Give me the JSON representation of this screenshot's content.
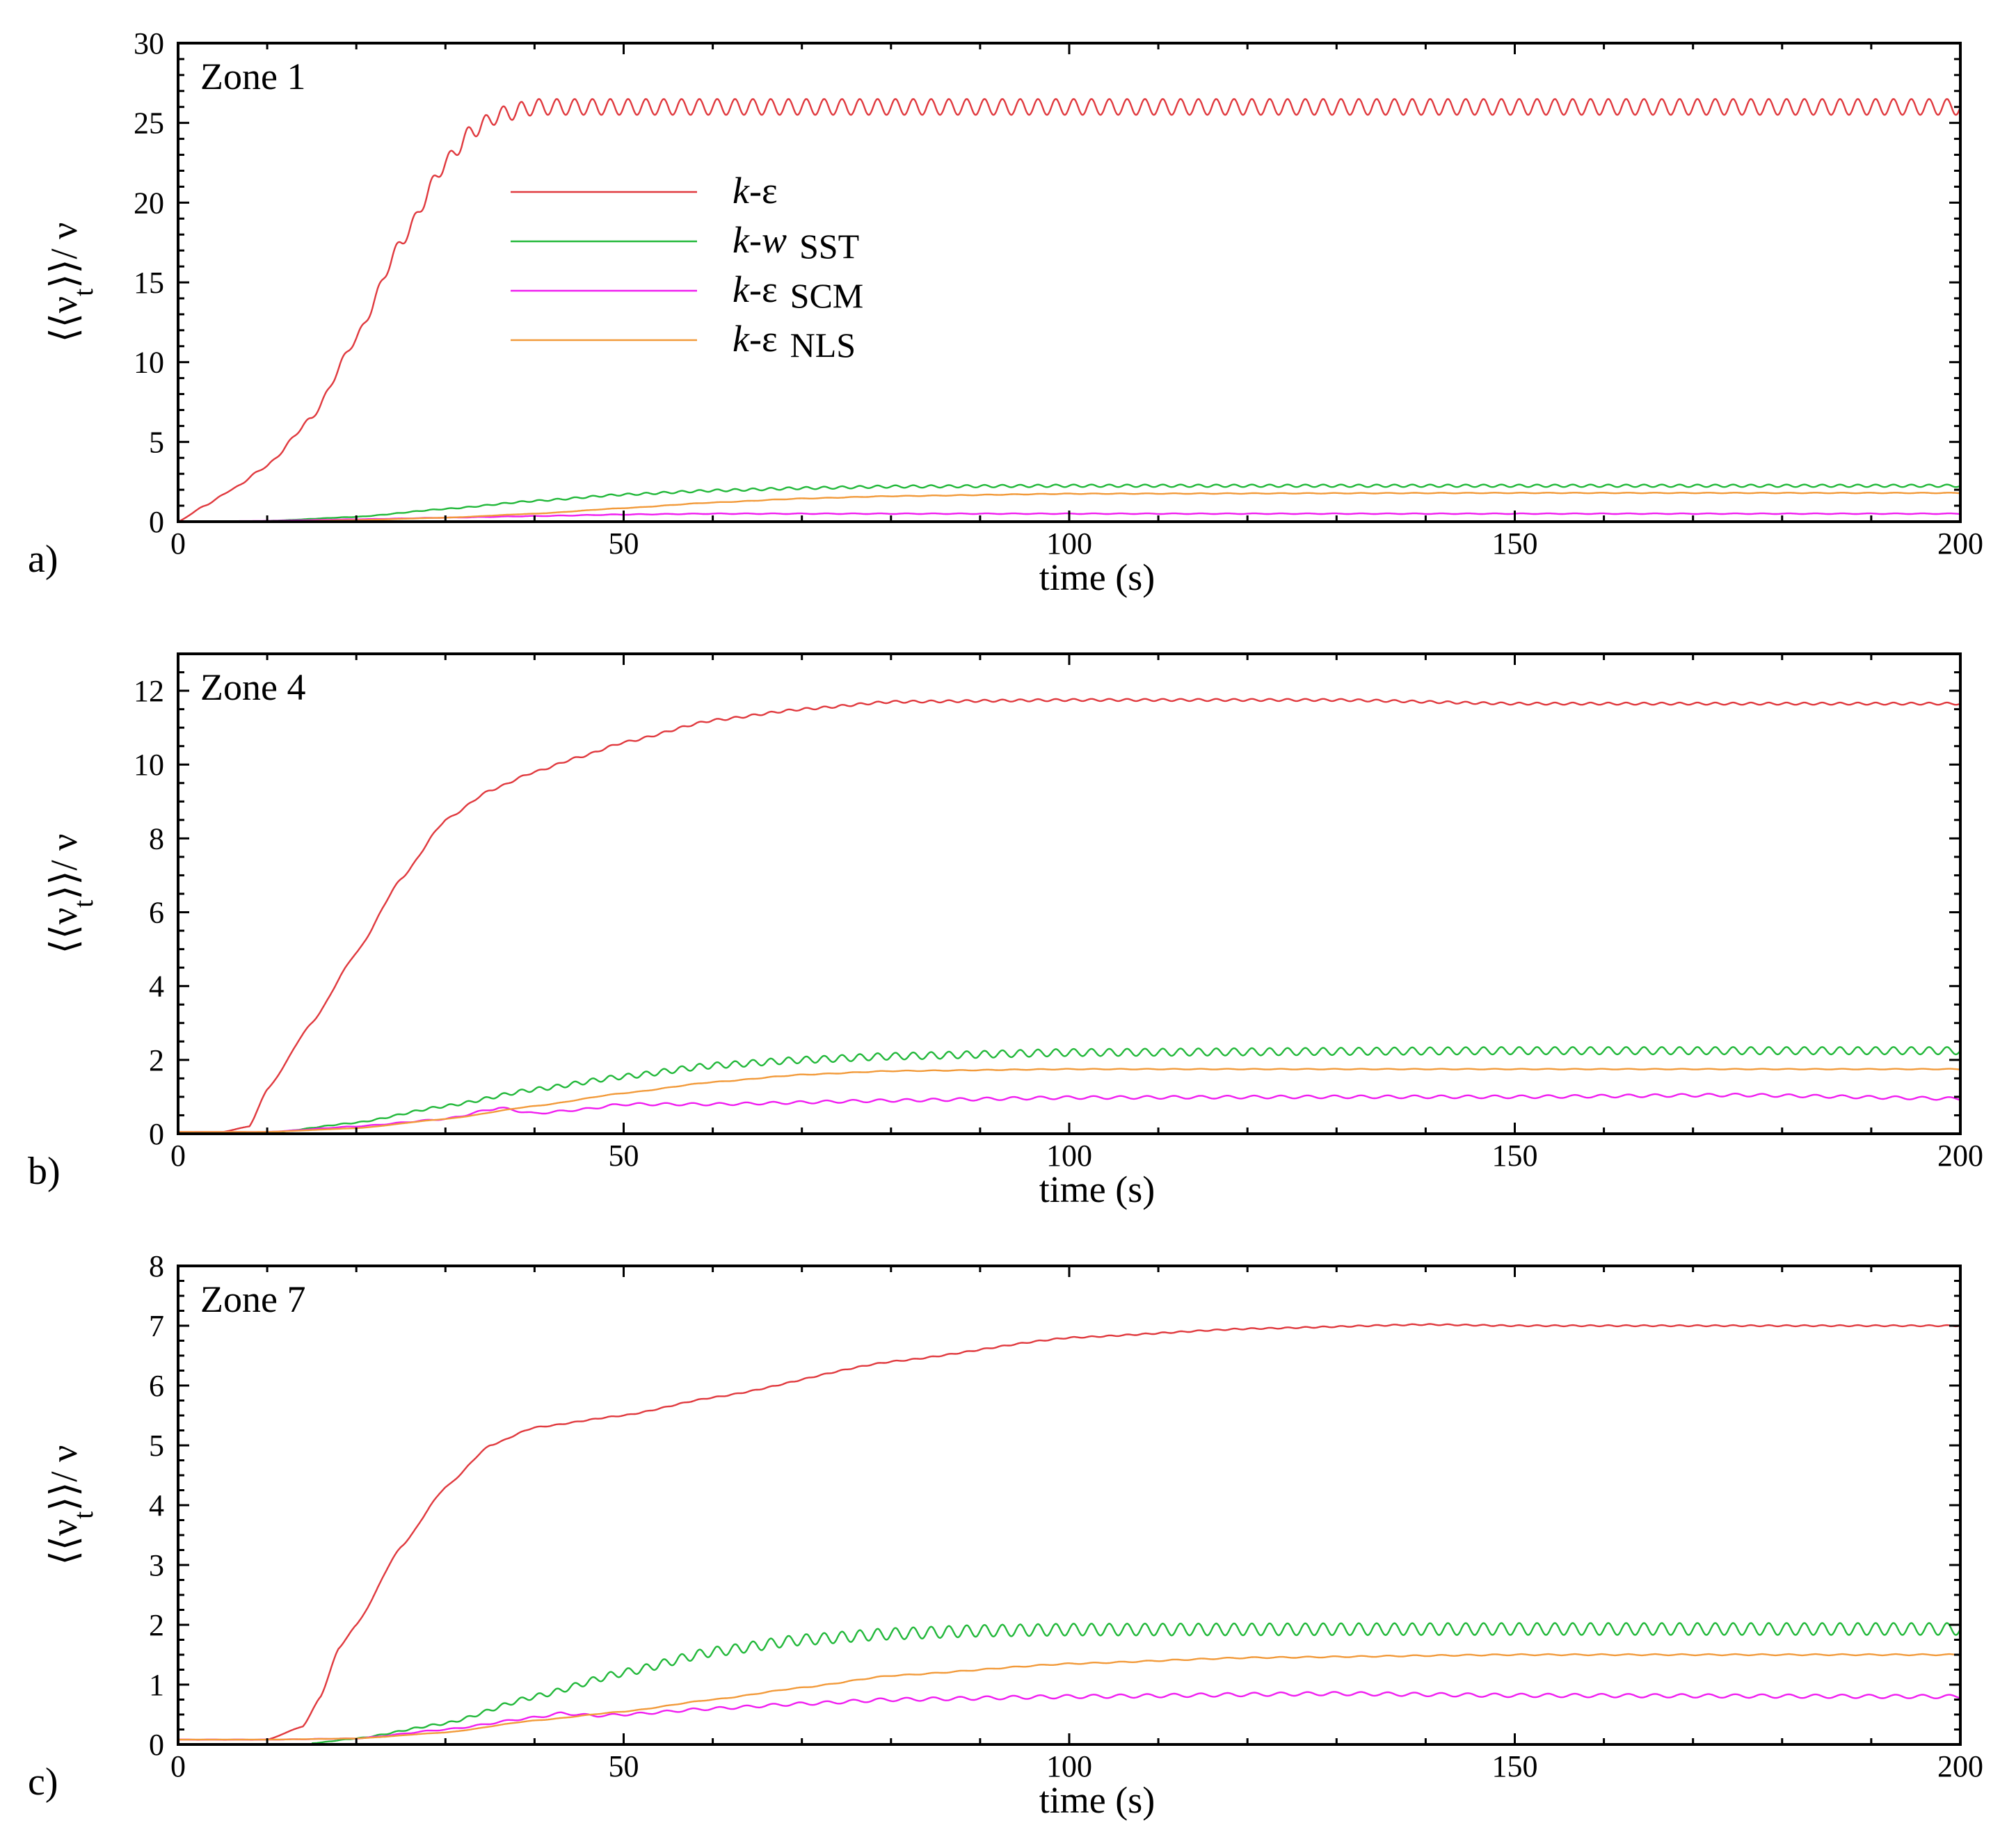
{
  "figure": {
    "colors": {
      "k_eps": "#e0393e",
      "k_w_sst": "#22b83a",
      "k_eps_scm": "#f01df0",
      "k_eps_nls": "#f29a3a"
    },
    "legend": {
      "entries": [
        {
          "prefix": "k",
          "suffix": "-ε",
          "tag": ""
        },
        {
          "prefix": "k",
          "suffix": "-w",
          "tag": "SST"
        },
        {
          "prefix": "k",
          "suffix": "-ε",
          "tag": "SCM"
        },
        {
          "prefix": "k",
          "suffix": "-ε",
          "tag": "NLS"
        }
      ]
    }
  },
  "chart_data": [
    {
      "type": "line",
      "panel_letter": "a)",
      "zone_label": "Zone 1",
      "xlabel": "time (s)",
      "ylabel": "⟨⟨ν_t⟩⟩/ ν",
      "xlim": [
        0,
        200
      ],
      "ylim": [
        0,
        30
      ],
      "xticks": [
        0,
        50,
        100,
        150,
        200
      ],
      "yticks": [
        0,
        5,
        10,
        15,
        20,
        25,
        30
      ],
      "grid": false,
      "legend_position": "upper-left inside",
      "series": [
        {
          "name": "k-ε",
          "x": [
            0,
            3,
            6,
            10,
            15,
            20,
            25,
            30,
            33,
            36,
            40,
            45,
            50,
            100,
            150,
            200
          ],
          "y": [
            0,
            1.0,
            2.0,
            3.5,
            6.5,
            11.5,
            17.5,
            22.5,
            24.5,
            25.5,
            26.0,
            26.0,
            26.0,
            26.0,
            26.0,
            26.0
          ],
          "osc_amp": 0.5,
          "osc_period": 2.0
        },
        {
          "name": "k-w SST",
          "x": [
            10,
            20,
            30,
            40,
            50,
            60,
            70,
            80,
            100,
            150,
            200
          ],
          "y": [
            0.05,
            0.3,
            0.8,
            1.3,
            1.7,
            1.95,
            2.1,
            2.2,
            2.25,
            2.25,
            2.25
          ],
          "osc_amp": 0.08,
          "osc_period": 2.0
        },
        {
          "name": "k-ε SCM",
          "x": [
            0,
            10,
            20,
            30,
            40,
            50,
            60,
            100,
            150,
            200
          ],
          "y": [
            0,
            0.05,
            0.15,
            0.25,
            0.35,
            0.45,
            0.5,
            0.5,
            0.5,
            0.5
          ],
          "osc_amp": 0.02,
          "osc_period": 3.0
        },
        {
          "name": "k-ε NLS",
          "x": [
            10,
            20,
            30,
            40,
            50,
            60,
            70,
            80,
            100,
            150,
            200
          ],
          "y": [
            0,
            0.1,
            0.25,
            0.5,
            0.85,
            1.2,
            1.45,
            1.6,
            1.75,
            1.8,
            1.8
          ],
          "osc_amp": 0.02,
          "osc_period": 3.0
        }
      ]
    },
    {
      "type": "line",
      "panel_letter": "b)",
      "zone_label": "Zone 4",
      "xlabel": "time (s)",
      "ylabel": "⟨⟨ν_t⟩⟩/ ν",
      "xlim": [
        0,
        200
      ],
      "ylim": [
        0,
        13
      ],
      "xticks": [
        0,
        50,
        100,
        150,
        200
      ],
      "yticks": [
        0,
        2,
        4,
        6,
        8,
        10,
        12
      ],
      "grid": false,
      "series": [
        {
          "name": "k-ε",
          "x": [
            0,
            5,
            8,
            10,
            15,
            20,
            25,
            30,
            35,
            40,
            45,
            50,
            60,
            70,
            80,
            100,
            130,
            150,
            200
          ],
          "y": [
            0.05,
            0.05,
            0.2,
            1.2,
            3.0,
            4.9,
            6.9,
            8.5,
            9.3,
            9.8,
            10.2,
            10.6,
            11.2,
            11.5,
            11.7,
            11.75,
            11.75,
            11.65,
            11.65
          ],
          "osc_amp": 0.03,
          "osc_period": 2.0
        },
        {
          "name": "k-w SST",
          "x": [
            10,
            20,
            30,
            40,
            50,
            60,
            70,
            80,
            100,
            150,
            200
          ],
          "y": [
            0.02,
            0.3,
            0.75,
            1.2,
            1.55,
            1.85,
            2.0,
            2.1,
            2.2,
            2.25,
            2.25
          ],
          "osc_amp": 0.1,
          "osc_period": 2.0
        },
        {
          "name": "k-ε SCM",
          "x": [
            0,
            10,
            20,
            30,
            36,
            40,
            45,
            50,
            60,
            80,
            100,
            130,
            150,
            175,
            200
          ],
          "y": [
            0.05,
            0.05,
            0.2,
            0.4,
            0.7,
            0.55,
            0.65,
            0.8,
            0.8,
            0.9,
            0.98,
            1.0,
            1.0,
            1.05,
            0.95
          ],
          "osc_amp": 0.04,
          "osc_period": 3.0
        },
        {
          "name": "k-ε NLS",
          "x": [
            0,
            10,
            20,
            30,
            40,
            50,
            60,
            70,
            80,
            100,
            150,
            200
          ],
          "y": [
            0.05,
            0.05,
            0.15,
            0.4,
            0.75,
            1.1,
            1.4,
            1.6,
            1.7,
            1.75,
            1.75,
            1.75
          ],
          "osc_amp": 0.01,
          "osc_period": 3.0
        }
      ]
    },
    {
      "type": "line",
      "panel_letter": "c)",
      "zone_label": "Zone 7",
      "xlabel": "time (s)",
      "ylabel": "⟨⟨ν_t⟩⟩/ ν",
      "xlim": [
        0,
        200
      ],
      "ylim": [
        0,
        8
      ],
      "xticks": [
        0,
        50,
        100,
        150,
        200
      ],
      "yticks": [
        0,
        1,
        2,
        3,
        4,
        5,
        6,
        7,
        8
      ],
      "grid": false,
      "series": [
        {
          "name": "k-ε",
          "x": [
            0,
            10,
            14,
            16,
            18,
            20,
            25,
            30,
            35,
            40,
            50,
            60,
            80,
            100,
            120,
            140,
            150,
            200
          ],
          "y": [
            0.08,
            0.08,
            0.3,
            0.8,
            1.6,
            2.0,
            3.3,
            4.3,
            5.0,
            5.3,
            5.5,
            5.8,
            6.4,
            6.8,
            6.95,
            7.02,
            7.0,
            7.0
          ],
          "osc_amp": 0.01,
          "osc_period": 2.0
        },
        {
          "name": "k-w SST",
          "x": [
            15,
            20,
            30,
            40,
            50,
            60,
            70,
            80,
            90,
            100,
            150,
            200
          ],
          "y": [
            0.02,
            0.1,
            0.35,
            0.8,
            1.2,
            1.55,
            1.75,
            1.85,
            1.9,
            1.92,
            1.93,
            1.93
          ],
          "osc_amp": 0.1,
          "osc_period": 2.0
        },
        {
          "name": "k-ε SCM",
          "x": [
            0,
            10,
            20,
            30,
            40,
            43,
            47,
            50,
            60,
            70,
            80,
            100,
            130,
            150,
            200
          ],
          "y": [
            0.08,
            0.08,
            0.1,
            0.25,
            0.45,
            0.52,
            0.48,
            0.5,
            0.6,
            0.68,
            0.75,
            0.8,
            0.85,
            0.82,
            0.8
          ],
          "osc_amp": 0.03,
          "osc_period": 3.0
        },
        {
          "name": "k-ε NLS",
          "x": [
            0,
            10,
            20,
            30,
            40,
            50,
            60,
            70,
            80,
            100,
            120,
            150,
            200
          ],
          "y": [
            0.08,
            0.08,
            0.1,
            0.2,
            0.4,
            0.55,
            0.75,
            0.95,
            1.15,
            1.35,
            1.45,
            1.5,
            1.5
          ],
          "osc_amp": 0.01,
          "osc_period": 3.0
        }
      ]
    }
  ]
}
